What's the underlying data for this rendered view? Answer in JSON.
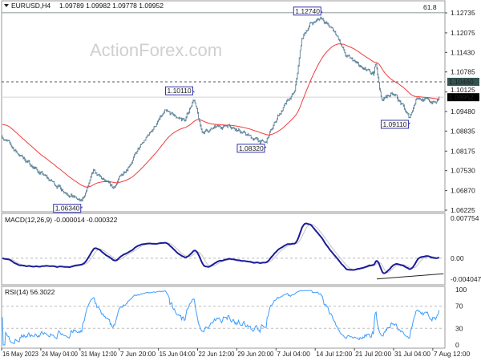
{
  "header": {
    "arrow_icon": "triangle-down-icon",
    "symbol": "EURUSD,H4",
    "ohlc": "1.09789 1.09982 1.09778 1.09952"
  },
  "watermark": "ActionForex.com",
  "colors": {
    "bars": "#5d8399",
    "moving_average": "#f03c3c",
    "macd": "#1c1c99",
    "macd_signal": "#c4c4c4",
    "rsi": "#3c9cff",
    "current_price_label": "#000000",
    "level_label": "#34524f"
  },
  "chart_data": [
    {
      "type": "ohlc",
      "panel": "price",
      "ylim": [
        1.06225,
        1.12735
      ],
      "y_ticks": [
        "1.12735",
        "1.12075",
        "1.11430",
        "1.10785",
        "1.10125",
        "1.09480",
        "1.08835",
        "1.08175",
        "1.07530",
        "1.06870",
        "1.06225"
      ],
      "x_ticks": [
        {
          "label": "16 May 2023",
          "t": "2023-05-16 00:00"
        },
        {
          "label": "24 May 04:00",
          "t": "2023-05-24 04:00"
        },
        {
          "label": "31 May 12:00",
          "t": "2023-05-31 12:00"
        },
        {
          "label": "7 Jun 20:00",
          "t": "2023-06-07 20:00"
        },
        {
          "label": "15 Jun 04:00",
          "t": "2023-06-15 04:00"
        },
        {
          "label": "22 Jun 12:00",
          "t": "2023-06-22 12:00"
        },
        {
          "label": "29 Jun 20:00",
          "t": "2023-06-29 20:00"
        },
        {
          "label": "7 Jul 04:00",
          "t": "2023-07-07 04:00"
        },
        {
          "label": "14 Jul 12:00",
          "t": "2023-07-14 12:00"
        },
        {
          "label": "21 Jul 20:00",
          "t": "2023-07-21 20:00"
        },
        {
          "label": "31 Jul 04:00",
          "t": "2023-07-31 04:00"
        },
        {
          "label": "7 Aug 12:00",
          "t": "2023-08-07 12:00"
        }
      ],
      "close_path": [
        [
          "2023-05-16 04:00",
          1.0866
        ],
        [
          "2023-05-19 04:00",
          1.0813
        ],
        [
          "2023-05-25 22:00",
          1.072
        ],
        [
          "2023-05-31 19:00",
          1.0648
        ],
        [
          "2023-06-03 00:00",
          1.0747
        ],
        [
          "2023-06-06 16:00",
          1.0694
        ],
        [
          "2023-06-09 15:00",
          1.0773
        ],
        [
          "2023-06-14 03:00",
          1.0892
        ],
        [
          "2023-06-16 09:00",
          1.0945
        ],
        [
          "2023-06-20 05:00",
          1.0919
        ],
        [
          "2023-06-21 18:00",
          1.0993
        ],
        [
          "2023-06-23 06:00",
          1.0879
        ],
        [
          "2023-06-28 09:00",
          1.0906
        ],
        [
          "2023-07-02 03:00",
          1.0866
        ],
        [
          "2023-07-05 04:00",
          1.0842
        ],
        [
          "2023-07-07 11:00",
          1.0932
        ],
        [
          "2023-07-10 17:00",
          1.1012
        ],
        [
          "2023-07-11 23:00",
          1.1184
        ],
        [
          "2023-07-13 11:00",
          1.1236
        ],
        [
          "2023-07-15 17:00",
          1.1258
        ],
        [
          "2023-07-18 16:00",
          1.1197
        ],
        [
          "2023-07-20 05:00",
          1.1131
        ],
        [
          "2023-07-23 13:00",
          1.1091
        ],
        [
          "2023-07-26 10:00",
          1.1065
        ],
        [
          "2023-07-26 23:00",
          1.1115
        ],
        [
          "2023-07-28 07:00",
          1.0985
        ],
        [
          "2023-07-31 04:00",
          1.1012
        ],
        [
          "2023-08-01 15:00",
          1.0972
        ],
        [
          "2023-08-03 02:00",
          1.0926
        ],
        [
          "2023-08-04 14:00",
          1.0999
        ],
        [
          "2023-08-06 01:00",
          1.0985
        ],
        [
          "2023-08-08 06:00",
          1.0977
        ],
        [
          "2023-08-08 18:00",
          1.0995
        ]
      ],
      "annotations": [
        {
          "text": "1.06340",
          "t": "2023-05-31 19:00",
          "price": 1.0634,
          "side": "below"
        },
        {
          "text": "1.10110",
          "t": "2023-06-21 18:00",
          "price": 1.1011,
          "side": "above"
        },
        {
          "text": "1.08320",
          "t": "2023-07-05 04:00",
          "price": 1.0832,
          "side": "below"
        },
        {
          "text": "1.12740",
          "t": "2023-07-15 17:00",
          "price": 1.1274,
          "side": "above"
        },
        {
          "text": "1.09110",
          "t": "2023-08-03 02:00",
          "price": 1.0911,
          "side": "below"
        }
      ],
      "levels": [
        {
          "price": 1.1274,
          "style": "solid",
          "text": "61.8"
        },
        {
          "price": 1.1046,
          "style": "dashed",
          "label": "1.10460"
        },
        {
          "price": 1.09952,
          "style": "current",
          "label": "1.09952"
        }
      ],
      "moving_average_period": 55
    },
    {
      "type": "line",
      "panel": "macd",
      "title": "MACD(12,26,9) -0.000014 -0.000322",
      "params": [
        12,
        26,
        9
      ],
      "ylim": [
        -0.004047,
        0.007754
      ],
      "y_ticks": [
        "0.007754",
        "0.00",
        "-0.004047"
      ],
      "trendline": [
        [
          "2023-07-27 04:00",
          -0.004
        ],
        [
          "2023-08-09 12:00",
          -0.003
        ]
      ]
    },
    {
      "type": "line",
      "panel": "rsi",
      "title": "RSI(14) 56.3022",
      "period": 14,
      "ylim": [
        0,
        100
      ],
      "y_ticks": [
        "100",
        "70",
        "30",
        "0"
      ],
      "levels": [
        70,
        30
      ]
    }
  ]
}
